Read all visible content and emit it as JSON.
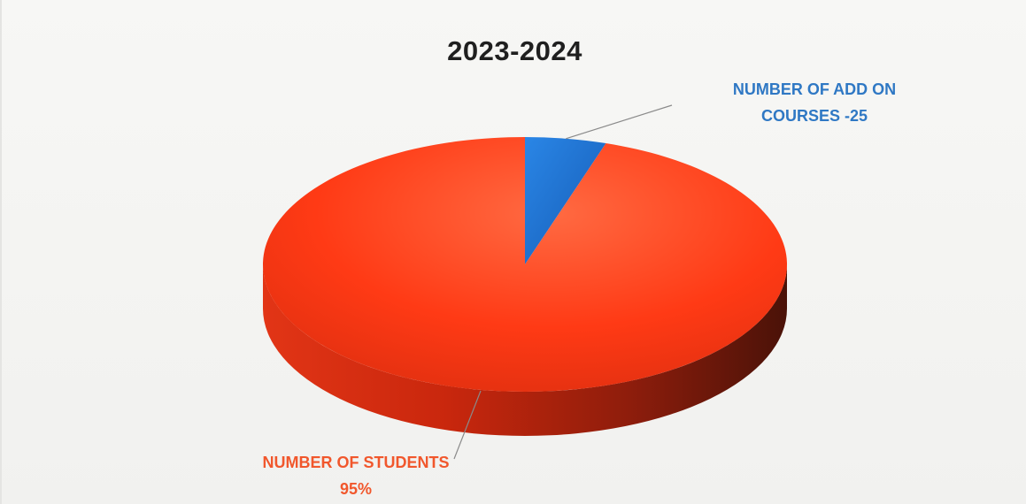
{
  "chart_data": {
    "type": "pie",
    "title": "2023-2024",
    "slices": [
      {
        "label_lines": [
          "NUMBER OF ADD ON",
          "COURSES -25"
        ],
        "value": 5,
        "color": "#1f6fce"
      },
      {
        "label_lines": [
          "NUMBER OF STUDENTS",
          "95%"
        ],
        "value": 95,
        "color": "#ff3a15"
      }
    ],
    "style": "3d",
    "legend": "none"
  }
}
